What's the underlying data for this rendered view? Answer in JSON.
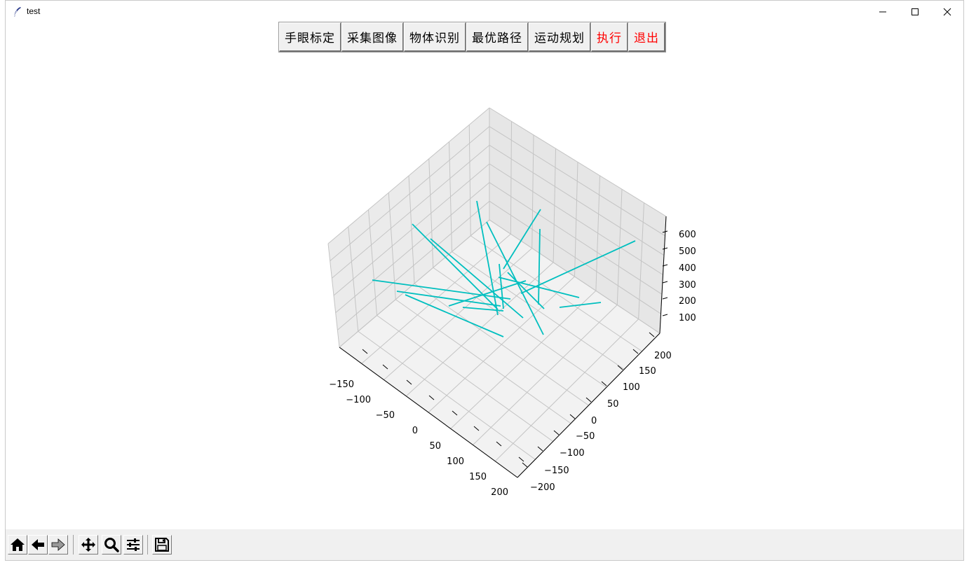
{
  "window": {
    "title": "test"
  },
  "toolbar": {
    "buttons": [
      {
        "label": "手眼标定",
        "color": "#000000"
      },
      {
        "label": "采集图像",
        "color": "#000000"
      },
      {
        "label": "物体识别",
        "color": "#000000"
      },
      {
        "label": "最优路径",
        "color": "#000000"
      },
      {
        "label": "运动规划",
        "color": "#000000"
      },
      {
        "label": "执行",
        "color": "#ff0000"
      },
      {
        "label": "退出",
        "color": "#ff0000"
      }
    ]
  },
  "chart_data": {
    "type": "line3d",
    "line_color": "#00bfbf",
    "grid": true,
    "x_ticks": [
      "−150",
      "−100",
      "−50",
      "0",
      "50",
      "100",
      "150",
      "200"
    ],
    "y_ticks": [
      "−200",
      "−150",
      "−100",
      "−50",
      "0",
      "50",
      "100",
      "150",
      "200"
    ],
    "z_ticks": [
      "100",
      "200",
      "300",
      "400",
      "500",
      "600"
    ]
  },
  "navbar": {
    "icons": [
      "home-icon",
      "back-icon",
      "forward-icon",
      "pan-icon",
      "zoom-icon",
      "configure-subplots-icon",
      "save-icon"
    ]
  }
}
